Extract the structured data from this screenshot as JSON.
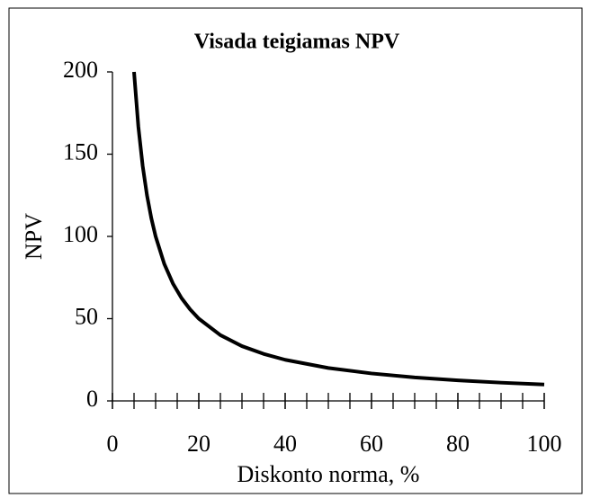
{
  "chart_data": {
    "type": "line",
    "title": "Visada teigiamas NPV",
    "xlabel": "Diskonto norma, %",
    "ylabel": "NPV",
    "x": [
      5,
      6,
      7,
      8,
      9,
      10,
      12,
      14,
      16,
      18,
      20,
      25,
      30,
      35,
      40,
      50,
      60,
      70,
      80,
      90,
      100
    ],
    "series": [
      {
        "name": "NPV",
        "color": "#000000",
        "values": [
          200,
          166.7,
          142.9,
          125,
          111.1,
          100,
          83.3,
          71.4,
          62.5,
          55.6,
          50,
          40,
          33.3,
          28.6,
          25,
          20,
          16.7,
          14.3,
          12.5,
          11.1,
          10
        ]
      }
    ],
    "xlim": [
      0,
      100
    ],
    "xticks": [
      0,
      20,
      40,
      60,
      80,
      100
    ],
    "xminorticks": [
      0,
      5,
      10,
      15,
      20,
      25,
      30,
      35,
      40,
      45,
      50,
      55,
      60,
      65,
      70,
      75,
      80,
      85,
      90,
      95,
      100
    ],
    "ylim": [
      0,
      200
    ],
    "yticks": [
      0,
      50,
      100,
      150,
      200
    ],
    "grid": false
  }
}
